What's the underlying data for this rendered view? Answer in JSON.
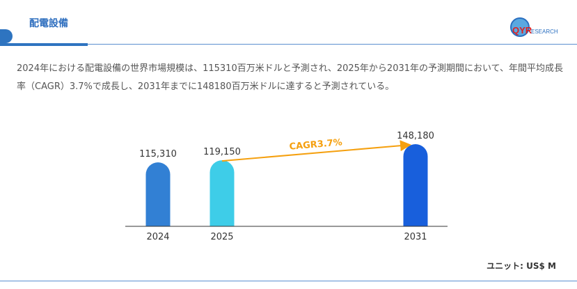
{
  "header": {
    "title": "配電設備",
    "logo_text": "QYRESEARCH"
  },
  "description": "2024年における配電設備の世界市場規模は、115310百万米ドルと予測され、2025年から2031年の予測期間において、年間平均成長率（CAGR）3.7%で成長し、2031年までに148180百万米ドルに達すると予測されている。",
  "unit_label": "ユニット: US$ M",
  "chart_data": {
    "type": "bar",
    "categories": [
      "2024",
      "2025",
      "2031"
    ],
    "values": [
      115310,
      119150,
      148180
    ],
    "value_labels": [
      "115,310",
      "119,150",
      "148,180"
    ],
    "colors": [
      "#3280d4",
      "#3ecde8",
      "#185fdc"
    ],
    "annotation": {
      "text": "CAGR3.7%",
      "from": "2025",
      "to": "2031",
      "color": "#f5a00f"
    },
    "ylim": [
      0,
      148180
    ],
    "grid": false
  }
}
